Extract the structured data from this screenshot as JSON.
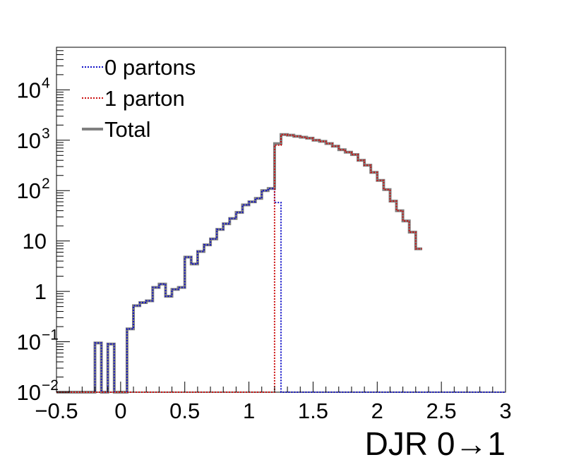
{
  "chart_data": {
    "type": "line",
    "xlabel": "DJR 0→1",
    "ylabel": "",
    "yscale": "log",
    "xlim": [
      -0.5,
      3
    ],
    "ylim": [
      0.01,
      70000
    ],
    "bin_width": 0.05,
    "x_ticks": [
      {
        "value": -0.5,
        "label": "−0.5"
      },
      {
        "value": 0,
        "label": "0"
      },
      {
        "value": 0.5,
        "label": "0.5"
      },
      {
        "value": 1,
        "label": "1"
      },
      {
        "value": 1.5,
        "label": "1.5"
      },
      {
        "value": 2,
        "label": "2"
      },
      {
        "value": 2.5,
        "label": "2.5"
      },
      {
        "value": 3,
        "label": "3"
      }
    ],
    "y_ticks": [
      {
        "value": 0.01,
        "label": "10",
        "exp": "−2"
      },
      {
        "value": 0.1,
        "label": "10",
        "exp": "−1"
      },
      {
        "value": 1,
        "label": "1",
        "exp": ""
      },
      {
        "value": 10,
        "label": "10",
        "exp": ""
      },
      {
        "value": 100,
        "label": "10",
        "exp": "2"
      },
      {
        "value": 1000,
        "label": "10",
        "exp": "3"
      },
      {
        "value": 10000,
        "label": "10",
        "exp": "4"
      }
    ],
    "legend_position": "top-left",
    "series": [
      {
        "name": "0 partons",
        "color": "#1010c8",
        "style": "dotted",
        "x_start": -0.5,
        "values": [
          0.01,
          0.01,
          0.01,
          0.01,
          0.01,
          0.01,
          0.095,
          0.01,
          0.09,
          0.01,
          0.01,
          0.18,
          0.52,
          0.6,
          0.65,
          1.2,
          1.4,
          0.8,
          1.1,
          1.2,
          4.8,
          3.5,
          6.2,
          8.4,
          11,
          17,
          22,
          28,
          37,
          52,
          60,
          70,
          100,
          110,
          58,
          0.01,
          0.01,
          0.01,
          0.01,
          0.01,
          0.01,
          0.01,
          0.01,
          0.01,
          0.01,
          0.01,
          0.01,
          0.01,
          0.01,
          0.01,
          0.01,
          0.01,
          0.01,
          0.01,
          0.01,
          0.01,
          0.01,
          0.01,
          0.01,
          0.01,
          0.01,
          0.01,
          0.01,
          0.01,
          0.01,
          0.01,
          0.01,
          0.01,
          0.01,
          0.01
        ]
      },
      {
        "name": "1 parton",
        "color": "#cc1010",
        "style": "dotted",
        "x_start": -0.5,
        "values": [
          0.01,
          0.01,
          0.01,
          0.01,
          0.01,
          0.01,
          0.01,
          0.01,
          0.01,
          0.01,
          0.01,
          0.01,
          0.01,
          0.01,
          0.01,
          0.01,
          0.01,
          0.01,
          0.01,
          0.01,
          0.01,
          0.01,
          0.01,
          0.01,
          0.01,
          0.01,
          0.01,
          0.01,
          0.01,
          0.01,
          0.01,
          0.01,
          0.01,
          0.01,
          800,
          1300,
          1260,
          1200,
          1150,
          1100,
          1000,
          950,
          860,
          760,
          650,
          580,
          520,
          400,
          320,
          230,
          160,
          105,
          62,
          40,
          25,
          15,
          7
        ]
      },
      {
        "name": "Total",
        "color": "#808080",
        "style": "solid",
        "x_start": -0.5,
        "values": [
          0.01,
          0.01,
          0.01,
          0.01,
          0.01,
          0.01,
          0.095,
          0.01,
          0.09,
          0.01,
          0.01,
          0.18,
          0.52,
          0.6,
          0.65,
          1.2,
          1.4,
          0.8,
          1.1,
          1.2,
          4.8,
          3.5,
          6.2,
          8.4,
          11,
          17,
          22,
          28,
          37,
          52,
          60,
          70,
          100,
          110,
          858,
          1300,
          1260,
          1200,
          1150,
          1100,
          1000,
          950,
          860,
          760,
          650,
          580,
          520,
          400,
          320,
          230,
          160,
          105,
          62,
          40,
          25,
          15,
          7
        ]
      }
    ]
  }
}
